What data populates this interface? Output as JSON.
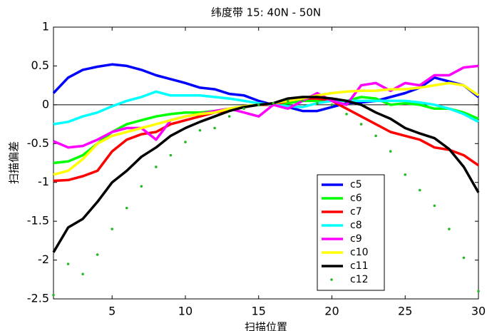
{
  "chart_data": {
    "type": "line",
    "title": "纬度带 15: 40N - 50N",
    "x_label": "扫描位置",
    "y_label": "扫描偏差",
    "x": [
      1,
      2,
      3,
      4,
      5,
      6,
      7,
      8,
      9,
      10,
      11,
      12,
      13,
      14,
      15,
      16,
      17,
      18,
      19,
      20,
      21,
      22,
      23,
      24,
      25,
      26,
      27,
      28,
      29,
      30
    ],
    "xlim": [
      1,
      30
    ],
    "xticks": [
      5,
      10,
      15,
      20,
      25,
      30
    ],
    "ylim": [
      -2.5,
      1
    ],
    "yticks": [
      -2.5,
      -2,
      -1.5,
      -1,
      -0.5,
      0,
      0.5,
      1
    ],
    "zero_line": true,
    "legend": "lower right",
    "series": [
      {
        "name": "c5",
        "color": "#0000ff",
        "style": "line",
        "values": [
          0.15,
          0.35,
          0.45,
          0.49,
          0.52,
          0.5,
          0.45,
          0.38,
          0.33,
          0.28,
          0.22,
          0.2,
          0.14,
          0.12,
          0.05,
          0.0,
          -0.03,
          -0.08,
          -0.08,
          -0.03,
          0.02,
          0.03,
          0.05,
          0.1,
          0.15,
          0.22,
          0.35,
          0.3,
          0.25,
          0.1
        ]
      },
      {
        "name": "c6",
        "color": "#00ff00",
        "style": "line",
        "values": [
          -0.75,
          -0.73,
          -0.65,
          -0.5,
          -0.35,
          -0.25,
          -0.2,
          -0.15,
          -0.12,
          -0.1,
          -0.1,
          -0.08,
          -0.05,
          -0.02,
          0.0,
          0.0,
          0.02,
          0.05,
          0.05,
          0.05,
          0.05,
          0.1,
          0.08,
          0.0,
          0.02,
          0.0,
          -0.05,
          -0.05,
          -0.1,
          -0.18
        ]
      },
      {
        "name": "c7",
        "color": "#ff0000",
        "style": "line",
        "values": [
          -0.98,
          -0.97,
          -0.92,
          -0.85,
          -0.6,
          -0.45,
          -0.38,
          -0.35,
          -0.25,
          -0.2,
          -0.15,
          -0.1,
          -0.07,
          -0.03,
          0.0,
          0.0,
          0.05,
          0.08,
          0.08,
          0.05,
          -0.05,
          -0.15,
          -0.25,
          -0.35,
          -0.4,
          -0.45,
          -0.55,
          -0.58,
          -0.65,
          -0.78
        ]
      },
      {
        "name": "c8",
        "color": "#00ffff",
        "style": "line",
        "values": [
          -0.25,
          -0.22,
          -0.15,
          -0.1,
          -0.02,
          0.05,
          0.1,
          0.17,
          0.12,
          0.12,
          0.12,
          0.1,
          0.08,
          0.05,
          0.02,
          0.0,
          -0.02,
          -0.03,
          0.02,
          0.05,
          0.05,
          0.05,
          0.05,
          0.05,
          0.05,
          0.03,
          0.0,
          -0.05,
          -0.12,
          -0.22
        ]
      },
      {
        "name": "c9",
        "color": "#ff00ff",
        "style": "line",
        "values": [
          -0.47,
          -0.55,
          -0.53,
          -0.45,
          -0.35,
          -0.3,
          -0.3,
          -0.45,
          -0.2,
          -0.15,
          -0.12,
          -0.08,
          -0.05,
          -0.1,
          -0.15,
          0.0,
          -0.05,
          0.05,
          0.15,
          0.05,
          0.0,
          0.25,
          0.28,
          0.18,
          0.28,
          0.25,
          0.38,
          0.38,
          0.48,
          0.5
        ]
      },
      {
        "name": "c10",
        "color": "#ffff00",
        "style": "line",
        "values": [
          -0.9,
          -0.85,
          -0.7,
          -0.5,
          -0.4,
          -0.35,
          -0.3,
          -0.25,
          -0.2,
          -0.15,
          -0.12,
          -0.1,
          -0.05,
          -0.02,
          0.0,
          0.02,
          0.05,
          0.08,
          0.12,
          0.15,
          0.17,
          0.18,
          0.18,
          0.2,
          0.2,
          0.22,
          0.25,
          0.28,
          0.25,
          0.12
        ]
      },
      {
        "name": "c11",
        "color": "#000000",
        "style": "line",
        "values": [
          -1.9,
          -1.58,
          -1.47,
          -1.25,
          -1.0,
          -0.85,
          -0.67,
          -0.55,
          -0.4,
          -0.3,
          -0.22,
          -0.15,
          -0.08,
          -0.03,
          0.0,
          0.02,
          0.08,
          0.1,
          0.1,
          0.08,
          0.05,
          0.0,
          -0.1,
          -0.18,
          -0.3,
          -0.37,
          -0.43,
          -0.57,
          -0.8,
          -1.13
        ]
      },
      {
        "name": "c12",
        "color": "#22bb22",
        "style": "dots",
        "values": [
          -2.45,
          -2.05,
          -2.18,
          -1.93,
          -1.6,
          -1.33,
          -1.05,
          -0.8,
          -0.65,
          -0.48,
          -0.33,
          -0.3,
          -0.15,
          -0.05,
          0.0,
          0.02,
          0.05,
          0.05,
          0.02,
          0.0,
          -0.12,
          -0.25,
          -0.4,
          -0.6,
          -0.9,
          -1.1,
          -1.3,
          -1.6,
          -1.97,
          -2.4
        ]
      }
    ]
  }
}
